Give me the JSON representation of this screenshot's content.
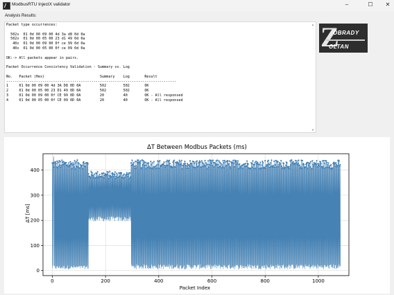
{
  "window": {
    "title": "ModbusRTU InjectX validator",
    "controls": {
      "minimize": "–",
      "maximize": "☐",
      "close": "✕"
    }
  },
  "analysis": {
    "label": "Analysis Results:",
    "text": "Packet type occurrences:\n\n  502x  01 0d 00 09 00 4d 3a d8 0d 0a\n  502x  01 0d 00 05 00 23 d1 49 0d 0a\n   40x  01 0d 00 09 00 0f ce 99 0d 0a\n   40x  01 0d 00 05 00 0f ce 09 0d 0a\n\nOK:-> All packets appear in pairs.\n\nPacket Occurrence Consistency Validation - Summary vs. Log\n\nNo.   Packet (Hex)                          Summary    Log       Result\n--------------------------------------------------------------------------------\n1     01 0d 00 09 00 4d 3A D8 0D 0A         502        502       OK\n2     01 0d 00 05 00 23 D1 49 0D 0A         502        502       OK\n3     01 0d 00 09 00 0f CE 99 0D 0A         20         40        OK - All responsed\n4     01 0d 00 05 00 0f CE 09 0D 0A         20         40        OK - All responsed"
  },
  "logo": {
    "line1": "OBRADY",
    "line2": "OLTAN",
    "initial": "Z"
  },
  "chart_data": {
    "type": "line",
    "title": "ΔT Between Modbus Packets (ms)",
    "xlabel": "Packet Index",
    "ylabel": "ΔT [ms]",
    "xlim": [
      -35,
      1115
    ],
    "ylim": [
      -20,
      465
    ],
    "xticks": [
      0,
      200,
      400,
      600,
      800,
      1000
    ],
    "yticks": [
      0,
      100,
      200,
      300,
      400
    ],
    "grid": true,
    "color": "#4682b4",
    "n_points": 1084,
    "segments": [
      {
        "x_range": [
          0,
          135
        ],
        "low_range": [
          5,
          20
        ],
        "high_range": [
          405,
          440
        ]
      },
      {
        "x_range": [
          136,
          295
        ],
        "low_range": [
          195,
          215
        ],
        "high_range": [
          365,
          395
        ]
      },
      {
        "x_range": [
          296,
          1083
        ],
        "low_range": [
          5,
          25
        ],
        "high_range": [
          405,
          440
        ]
      }
    ],
    "peak": {
      "x": 5,
      "y": 455
    }
  }
}
